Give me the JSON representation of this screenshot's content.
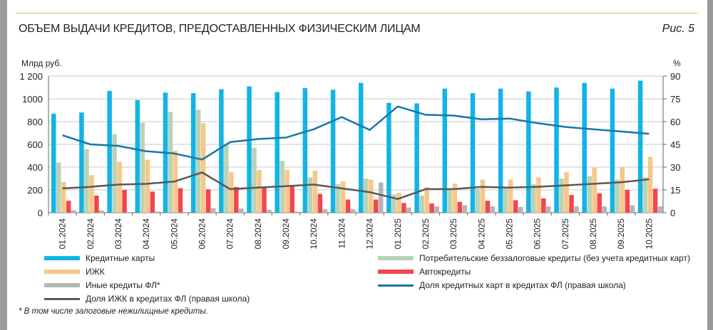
{
  "header": {
    "title": "ОБЪЕМ ВЫДАЧИ КРЕДИТОВ, ПРЕДОСТАВЛЕННЫХ ФИЗИЧЕСКИМ ЛИЦАМ",
    "figure": "Рис. 5"
  },
  "footnote": "* В том числе залоговые нежилищные кредиты.",
  "chart_data": {
    "type": "bar+line",
    "ylabel_left": "Млрд руб.",
    "ylabel_right": "%",
    "ylim_left": [
      0,
      1200
    ],
    "yticks_left": [
      "0",
      "200",
      "400",
      "600",
      "800",
      "1000",
      "1 200"
    ],
    "ylim_right": [
      0,
      90
    ],
    "yticks_right": [
      "0",
      "15",
      "30",
      "45",
      "60",
      "75",
      "90"
    ],
    "grid": true,
    "legend_position": "bottom",
    "categories": [
      "01.2024",
      "02.2024",
      "03.2024",
      "04.2024",
      "05.2024",
      "06.2024",
      "07.2024",
      "08.2024",
      "09.2024",
      "10.2024",
      "11.2024",
      "12.2024",
      "01.2025",
      "02.2025",
      "03.2025",
      "04.2025",
      "05.2025",
      "06.2025",
      "07.2025",
      "08.2025",
      "09.2025",
      "10.2025"
    ],
    "series": [
      {
        "name": "Кредитные карты",
        "kind": "bar",
        "axis": "left",
        "color": "#12b4e6",
        "values": [
          870,
          880,
          1070,
          990,
          1055,
          1050,
          1085,
          1110,
          1060,
          1095,
          1080,
          1140,
          965,
          960,
          1090,
          1050,
          1090,
          1065,
          1100,
          1140,
          1090,
          1160
        ]
      },
      {
        "name": "Потребительские беззалоговые кредиты (без учета кредитных карт)",
        "kind": "bar",
        "axis": "left",
        "color": "#b9d3b6",
        "values": [
          440,
          560,
          690,
          790,
          885,
          905,
          600,
          570,
          455,
          310,
          250,
          300,
          160,
          150,
          200,
          210,
          220,
          250,
          300,
          320,
          290,
          310
        ]
      },
      {
        "name": "ИЖК",
        "kind": "bar",
        "axis": "left",
        "color": "#f8c787",
        "values": [
          270,
          330,
          445,
          465,
          545,
          785,
          355,
          375,
          375,
          370,
          275,
          290,
          175,
          225,
          255,
          290,
          290,
          310,
          355,
          395,
          400,
          490
        ]
      },
      {
        "name": "Автокредиты",
        "kind": "bar",
        "axis": "left",
        "color": "#f0474f",
        "values": [
          105,
          150,
          200,
          185,
          215,
          205,
          225,
          220,
          230,
          165,
          115,
          115,
          85,
          80,
          95,
          105,
          110,
          125,
          155,
          170,
          200,
          210
        ]
      },
      {
        "name": "Иные кредиты ФЛ*",
        "kind": "bar",
        "axis": "left",
        "color": "#b5b5b5",
        "values": [
          20,
          20,
          5,
          10,
          5,
          40,
          35,
          25,
          10,
          30,
          30,
          265,
          45,
          55,
          65,
          55,
          50,
          55,
          55,
          55,
          65,
          55
        ]
      },
      {
        "name": "Доля ИЖК в кредитах ФЛ (правая школа)",
        "kind": "line",
        "axis": "right",
        "color": "#58585a",
        "values": [
          16,
          17,
          18.5,
          19,
          20.5,
          26.5,
          15.5,
          16.5,
          17.5,
          18.5,
          16,
          13.5,
          9,
          15.5,
          15.5,
          17,
          16.5,
          17,
          18,
          19,
          20,
          22
        ]
      },
      {
        "name": "Доля кредитных карт в кредитах ФЛ (правая школа)",
        "kind": "line",
        "axis": "right",
        "color": "#1478a8",
        "values": [
          51,
          45,
          44,
          40.5,
          39,
          35,
          46.5,
          48.5,
          49.5,
          55,
          63,
          54.5,
          70,
          64.5,
          64,
          61.5,
          62,
          59,
          56.5,
          55,
          53.5,
          52
        ]
      }
    ],
    "legend_order": [
      0,
      1,
      2,
      3,
      4,
      6,
      5
    ]
  }
}
